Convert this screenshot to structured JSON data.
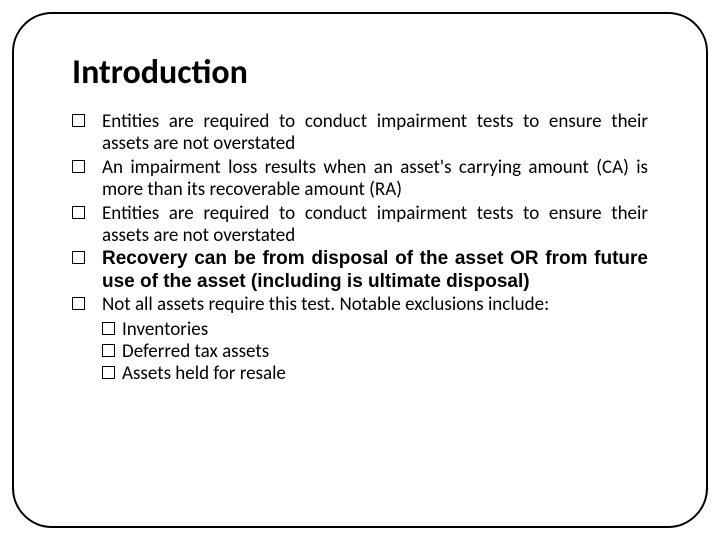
{
  "title": "Introduction",
  "title_fontsize": 34,
  "body_fontsize": 19,
  "frame_border_color": "#000000",
  "frame_radius": 40,
  "text_color": "#000000",
  "background_color": "#ffffff",
  "bullet_marker": "checkbox",
  "bullets": [
    {
      "text": "Entities are required to conduct impairment tests to ensure their assets are not overstated",
      "bold": false
    },
    {
      "text": "An impairment loss results when an asset's carrying amount (CA) is more than its recoverable amount (RA)",
      "bold": false
    },
    {
      "text": "Entities are required to conduct impairment tests to ensure their assets are not overstated",
      "bold": false
    },
    {
      "text": "Recovery can be from disposal of the asset OR from future use of the asset (including is ultimate disposal)",
      "bold": true
    },
    {
      "text": "Not all assets require this test.  Notable exclusions include:",
      "bold": false
    }
  ],
  "sub_bullets": [
    "Inventories",
    "Deferred tax assets",
    "Assets held for resale"
  ]
}
